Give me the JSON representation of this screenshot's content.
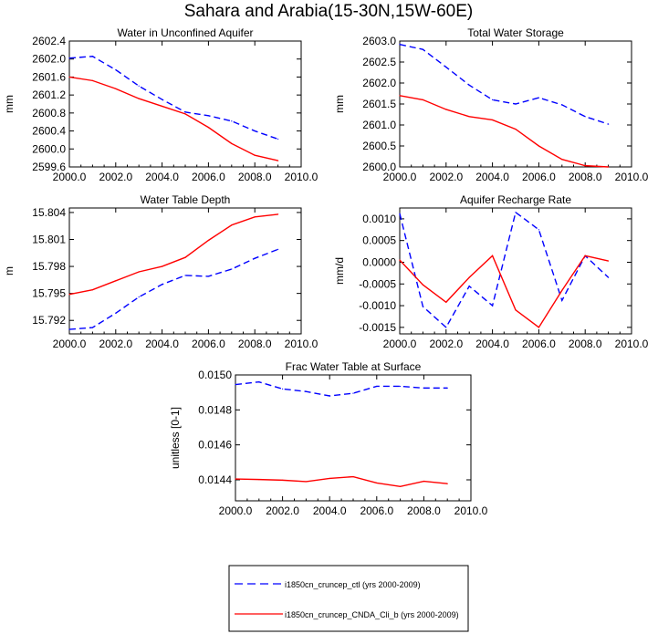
{
  "figure": {
    "title": "Sahara and Arabia(15-30N,15W-60E)",
    "colors": {
      "ctl": "#0000ff",
      "cnda": "#ff0000",
      "axis": "#000000"
    }
  },
  "legend": {
    "entries": [
      {
        "label": "i1850cn_cruncep_ctl (yrs 2000-2009)",
        "color": "#0000ff",
        "dash": "dashed"
      },
      {
        "label": "i1850cn_cruncep_CNDA_Cli_b (yrs 2000-2009)",
        "color": "#ff0000",
        "dash": "solid"
      }
    ]
  },
  "chart_data": [
    {
      "id": "unconfined",
      "type": "line",
      "title": "Water in Unconfined Aquifer",
      "ylabel": "mm",
      "xlabel": "",
      "xlim": [
        2000,
        2010
      ],
      "ylim": [
        2599.6,
        2602.4
      ],
      "xticks": [
        2000,
        2002,
        2004,
        2006,
        2008,
        2010
      ],
      "xtick_labels": [
        "2000.0",
        "2002.0",
        "2004.0",
        "2006.0",
        "2008.0",
        "2010.0"
      ],
      "yticks": [
        2599.6,
        2600.0,
        2600.4,
        2600.8,
        2601.2,
        2601.6,
        2602.0,
        2602.4
      ],
      "ytick_labels": [
        "2599.6",
        "2600.0",
        "2600.4",
        "2600.8",
        "2601.2",
        "2601.6",
        "2602.0",
        "2602.4"
      ],
      "x": [
        2000,
        2001,
        2002,
        2003,
        2004,
        2005,
        2006,
        2007,
        2008,
        2009
      ],
      "series": [
        {
          "key": "ctl",
          "values": [
            2602.02,
            2602.06,
            2601.76,
            2601.4,
            2601.1,
            2600.82,
            2600.74,
            2600.62,
            2600.4,
            2600.22
          ]
        },
        {
          "key": "cnda",
          "values": [
            2601.6,
            2601.52,
            2601.34,
            2601.12,
            2600.95,
            2600.78,
            2600.48,
            2600.12,
            2599.86,
            2599.74
          ]
        }
      ]
    },
    {
      "id": "storage",
      "type": "line",
      "title": "Total Water Storage",
      "ylabel": "mm",
      "xlabel": "",
      "xlim": [
        2000,
        2010
      ],
      "ylim": [
        2600.0,
        2603.0
      ],
      "xticks": [
        2000,
        2002,
        2004,
        2006,
        2008,
        2010
      ],
      "xtick_labels": [
        "2000.0",
        "2002.0",
        "2004.0",
        "2006.0",
        "2008.0",
        "2010.0"
      ],
      "yticks": [
        2600.0,
        2600.5,
        2601.0,
        2601.5,
        2602.0,
        2602.5,
        2603.0
      ],
      "ytick_labels": [
        "2600.0",
        "2600.5",
        "2601.0",
        "2601.5",
        "2602.0",
        "2602.5",
        "2603.0"
      ],
      "x": [
        2000,
        2001,
        2002,
        2003,
        2004,
        2005,
        2006,
        2007,
        2008,
        2009
      ],
      "series": [
        {
          "key": "ctl",
          "values": [
            2602.92,
            2602.8,
            2602.38,
            2601.95,
            2601.6,
            2601.5,
            2601.65,
            2601.48,
            2601.2,
            2601.02
          ]
        },
        {
          "key": "cnda",
          "values": [
            2601.7,
            2601.6,
            2601.37,
            2601.2,
            2601.12,
            2600.9,
            2600.5,
            2600.18,
            2600.03,
            2600.0
          ]
        }
      ]
    },
    {
      "id": "wtd",
      "type": "line",
      "title": "Water Table Depth",
      "ylabel": "m",
      "xlabel": "",
      "xlim": [
        2000,
        2010
      ],
      "ylim": [
        15.7905,
        15.8045
      ],
      "xticks": [
        2000,
        2002,
        2004,
        2006,
        2008,
        2010
      ],
      "xtick_labels": [
        "2000.0",
        "2002.0",
        "2004.0",
        "2006.0",
        "2008.0",
        "2010.0"
      ],
      "yticks": [
        15.792,
        15.795,
        15.798,
        15.801,
        15.804
      ],
      "ytick_labels": [
        "15.792",
        "15.795",
        "15.798",
        "15.801",
        "15.804"
      ],
      "x": [
        2000,
        2001,
        2002,
        2003,
        2004,
        2005,
        2006,
        2007,
        2008,
        2009
      ],
      "series": [
        {
          "key": "ctl",
          "values": [
            15.791,
            15.7912,
            15.7928,
            15.7946,
            15.796,
            15.797,
            15.7969,
            15.7977,
            15.7989,
            15.7999
          ]
        },
        {
          "key": "cnda",
          "values": [
            15.7949,
            15.7954,
            15.7964,
            15.7974,
            15.798,
            15.799,
            15.8009,
            15.8026,
            15.8035,
            15.8038
          ]
        }
      ]
    },
    {
      "id": "recharge",
      "type": "line",
      "title": "Aquifer Recharge Rate",
      "ylabel": "mm/d",
      "xlabel": "",
      "xlim": [
        2000,
        2010
      ],
      "ylim": [
        -0.00165,
        0.00125
      ],
      "xticks": [
        2000,
        2002,
        2004,
        2006,
        2008,
        2010
      ],
      "xtick_labels": [
        "2000.0",
        "2002.0",
        "2004.0",
        "2006.0",
        "2008.0",
        "2010.0"
      ],
      "yticks": [
        -0.0015,
        -0.001,
        -0.0005,
        0.0,
        0.0005,
        0.001
      ],
      "ytick_labels": [
        "-0.0015",
        "-0.0010",
        "-0.0005",
        "0.0000",
        "0.0005",
        "0.0010"
      ],
      "x": [
        2000,
        2001,
        2002,
        2003,
        2004,
        2005,
        2006,
        2007,
        2008,
        2009
      ],
      "series": [
        {
          "key": "ctl",
          "values": [
            0.00112,
            -0.00102,
            -0.0015,
            -0.00055,
            -0.001,
            0.00115,
            0.00075,
            -0.00088,
            0.00015,
            -0.00035
          ]
        },
        {
          "key": "cnda",
          "values": [
            5e-05,
            -0.00052,
            -0.00092,
            -0.00035,
            0.00015,
            -0.0011,
            -0.0015,
            -0.00065,
            0.00015,
            3e-05
          ]
        }
      ]
    },
    {
      "id": "fsat",
      "type": "line",
      "title": "Frac Water Table at Surface",
      "ylabel": "unitless [0-1]",
      "xlabel": "",
      "xlim": [
        2000,
        2010
      ],
      "ylim": [
        0.01428,
        0.015
      ],
      "xticks": [
        2000,
        2002,
        2004,
        2006,
        2008,
        2010
      ],
      "xtick_labels": [
        "2000.0",
        "2002.0",
        "2004.0",
        "2006.0",
        "2008.0",
        "2010.0"
      ],
      "yticks": [
        0.0144,
        0.0146,
        0.0148,
        0.015
      ],
      "ytick_labels": [
        "0.0144",
        "0.0146",
        "0.0148",
        "0.0150"
      ],
      "x": [
        2000,
        2001,
        2002,
        2003,
        2004,
        2005,
        2006,
        2007,
        2008,
        2009
      ],
      "series": [
        {
          "key": "ctl",
          "values": [
            0.014945,
            0.01496,
            0.01492,
            0.014905,
            0.01488,
            0.014895,
            0.014935,
            0.014935,
            0.014925,
            0.014925
          ]
        },
        {
          "key": "cnda",
          "values": [
            0.014405,
            0.014402,
            0.014398,
            0.01439,
            0.014408,
            0.014418,
            0.014382,
            0.014362,
            0.014392,
            0.014378
          ]
        }
      ]
    }
  ]
}
